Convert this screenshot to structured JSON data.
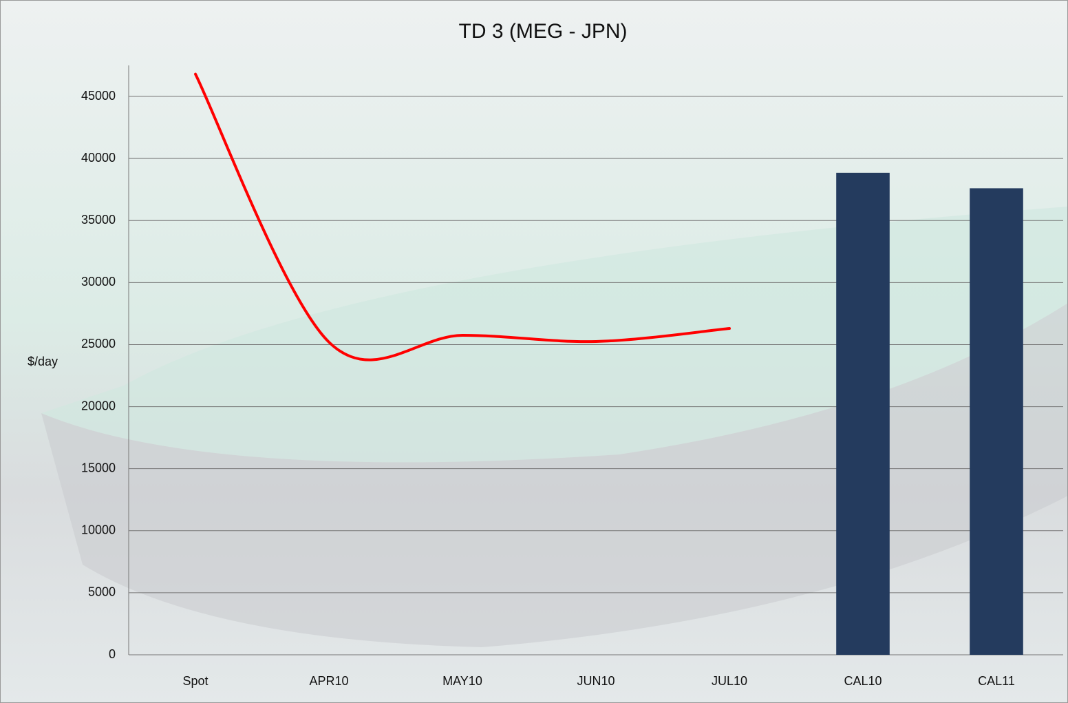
{
  "chart_data": {
    "type": "combo",
    "title": "TD 3 (MEG - JPN)",
    "y_label": "$/day",
    "categories": [
      "Spot",
      "APR10",
      "MAY10",
      "JUN10",
      "JUL10",
      "CAL10",
      "CAL11"
    ],
    "series": [
      {
        "type": "line",
        "color": "#ff0000",
        "values": [
          46800,
          25200,
          25750,
          25250,
          26300,
          null,
          null
        ]
      },
      {
        "type": "bar",
        "color": "#243b5e",
        "values": [
          null,
          null,
          null,
          null,
          null,
          38850,
          37600
        ]
      }
    ],
    "ylim": [
      0,
      47500
    ],
    "yticks": [
      0,
      5000,
      10000,
      15000,
      20000,
      25000,
      30000,
      35000,
      40000,
      45000
    ],
    "grid": true
  }
}
